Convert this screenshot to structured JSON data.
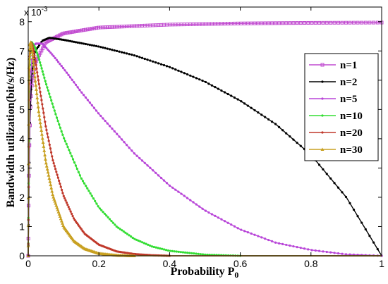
{
  "chart_data": {
    "type": "line",
    "title": "",
    "xlabel": "Probability P",
    "xlabel_subscript": "0",
    "ylabel": "Bandwidth utilization(bit/s/Hz)",
    "y_multiplier": "x 10",
    "y_multiplier_exponent": "-3",
    "xlim": [
      0,
      1
    ],
    "ylim": [
      0,
      8.5
    ],
    "x_ticks": [
      "0",
      "0.2",
      "0.4",
      "0.6",
      "0.8",
      "1"
    ],
    "y_ticks": [
      "0",
      "1",
      "2",
      "3",
      "4",
      "5",
      "6",
      "7",
      "8"
    ],
    "grid": false,
    "legend_position": "right",
    "series": [
      {
        "name": "n=1",
        "color": "#c14bd0",
        "marker": "square",
        "x": [
          0,
          0.001,
          0.003,
          0.006,
          0.01,
          0.02,
          0.05,
          0.1,
          0.2,
          0.4,
          0.6,
          0.8,
          1.0
        ],
        "y": [
          0,
          1.6,
          3.6,
          5.0,
          5.8,
          6.6,
          7.3,
          7.6,
          7.8,
          7.9,
          7.94,
          7.96,
          7.97
        ]
      },
      {
        "name": "n=2",
        "color": "#000000",
        "marker": "dot",
        "x": [
          0,
          0.005,
          0.01,
          0.02,
          0.04,
          0.06,
          0.1,
          0.2,
          0.3,
          0.4,
          0.5,
          0.6,
          0.7,
          0.8,
          0.9,
          1.0
        ],
        "y": [
          0,
          4.7,
          6.2,
          7.0,
          7.35,
          7.45,
          7.38,
          7.15,
          6.85,
          6.45,
          5.95,
          5.3,
          4.5,
          3.45,
          2.0,
          0.0
        ]
      },
      {
        "name": "n=5",
        "color": "#b845d8",
        "marker": "dot",
        "x": [
          0,
          0.005,
          0.01,
          0.02,
          0.04,
          0.07,
          0.1,
          0.15,
          0.2,
          0.3,
          0.4,
          0.5,
          0.6,
          0.7,
          0.8,
          0.9,
          1.0
        ],
        "y": [
          0,
          5.5,
          6.7,
          7.25,
          7.25,
          6.85,
          6.4,
          5.6,
          4.85,
          3.5,
          2.4,
          1.55,
          0.9,
          0.45,
          0.2,
          0.05,
          0.0
        ]
      },
      {
        "name": "n=10",
        "color": "#33dd33",
        "marker": "dot",
        "x": [
          0,
          0.003,
          0.006,
          0.01,
          0.02,
          0.03,
          0.05,
          0.08,
          0.1,
          0.15,
          0.2,
          0.25,
          0.3,
          0.35,
          0.4,
          0.5,
          0.6
        ],
        "y": [
          0,
          5.8,
          6.9,
          7.3,
          7.1,
          6.75,
          5.9,
          4.75,
          4.05,
          2.65,
          1.65,
          1.0,
          0.58,
          0.32,
          0.17,
          0.04,
          0.0
        ]
      },
      {
        "name": "n=20",
        "color": "#c0392b",
        "marker": "dot",
        "x": [
          0,
          0.002,
          0.004,
          0.008,
          0.012,
          0.02,
          0.03,
          0.05,
          0.07,
          0.1,
          0.13,
          0.16,
          0.2,
          0.25,
          0.3,
          0.35,
          0.4
        ],
        "y": [
          0,
          5.5,
          6.8,
          7.3,
          7.2,
          6.7,
          5.9,
          4.4,
          3.25,
          2.05,
          1.25,
          0.75,
          0.38,
          0.15,
          0.06,
          0.02,
          0.0
        ]
      },
      {
        "name": "n=30",
        "color": "#c8a020",
        "marker": "triangle",
        "x": [
          0,
          0.002,
          0.004,
          0.007,
          0.01,
          0.015,
          0.02,
          0.03,
          0.05,
          0.07,
          0.1,
          0.13,
          0.16,
          0.2,
          0.25,
          0.3
        ],
        "y": [
          0,
          6.2,
          7.2,
          7.3,
          7.1,
          6.6,
          6.0,
          4.9,
          3.2,
          2.05,
          1.0,
          0.5,
          0.24,
          0.08,
          0.02,
          0.0
        ]
      }
    ]
  }
}
